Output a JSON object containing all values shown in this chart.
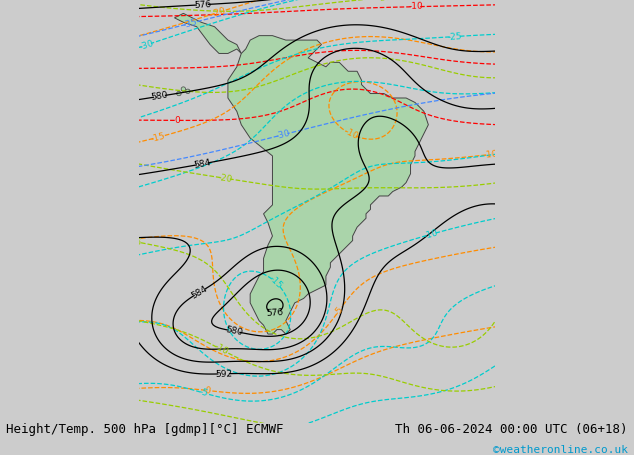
{
  "title_left": "Height/Temp. 500 hPa [gdmp][°C] ECMWF",
  "title_right": "Th 06-06-2024 00:00 UTC (06+18)",
  "credit": "©weatheronline.co.uk",
  "credit_color": "#0099cc",
  "bg_color": "#cccccc",
  "land_color": "#aad4aa",
  "highland_color": "#999999",
  "ocean_color": "#cccccc",
  "title_fontsize": 9,
  "credit_fontsize": 8,
  "figsize": [
    6.34,
    4.55
  ],
  "dpi": 100,
  "map_xlim": [
    -100,
    -20
  ],
  "map_ylim": [
    -75,
    20
  ]
}
